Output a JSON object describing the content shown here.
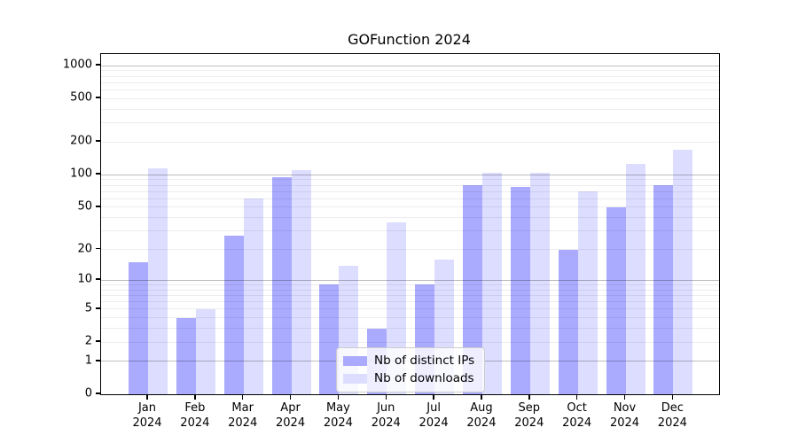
{
  "title": "GOFunction 2024",
  "chart_data": {
    "type": "bar",
    "title": "GOFunction 2024",
    "x_labels": [
      {
        "month": "Jan",
        "year": "2024"
      },
      {
        "month": "Feb",
        "year": "2024"
      },
      {
        "month": "Mar",
        "year": "2024"
      },
      {
        "month": "Apr",
        "year": "2024"
      },
      {
        "month": "May",
        "year": "2024"
      },
      {
        "month": "Jun",
        "year": "2024"
      },
      {
        "month": "Jul",
        "year": "2024"
      },
      {
        "month": "Aug",
        "year": "2024"
      },
      {
        "month": "Sep",
        "year": "2024"
      },
      {
        "month": "Oct",
        "year": "2024"
      },
      {
        "month": "Nov",
        "year": "2024"
      },
      {
        "month": "Dec",
        "year": "2024"
      }
    ],
    "series": [
      {
        "name": "Nb of distinct IPs",
        "color": "#aaaaff",
        "values": [
          15,
          4,
          27,
          94,
          9,
          3,
          9,
          80,
          77,
          20,
          50,
          80
        ]
      },
      {
        "name": "Nb of downloads",
        "color": "#ddddff",
        "values": [
          115,
          5,
          60,
          110,
          14,
          36,
          16,
          105,
          105,
          70,
          125,
          170
        ]
      }
    ],
    "y_axis": {
      "scale": "log10(value+1)",
      "ticks": [
        0,
        1,
        2,
        5,
        10,
        20,
        50,
        100,
        200,
        500,
        1000
      ],
      "major_gridlines": [
        1,
        10,
        100,
        1000
      ],
      "top_value": 1275
    },
    "legend_position": "lower center inside",
    "grid": "horizontal"
  }
}
